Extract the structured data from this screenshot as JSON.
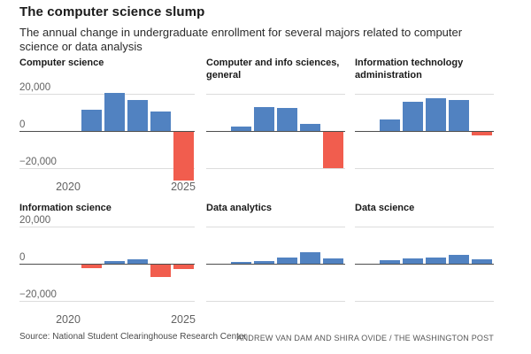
{
  "header": {
    "title": "The computer science slump",
    "subtitle": "The annual change in undergraduate enrollment for several majors related to computer science or data analysis",
    "subtitle_lines": [
      "The annual change in undergraduate enrollment for several majors related to computer",
      "science or data analysis"
    ]
  },
  "footer": {
    "source": "Source: National Student Clearinghouse Research Center",
    "credit": "ANDREW VAN DAM AND SHIRA OVIDE / THE WASHINGTON POST"
  },
  "colors": {
    "positive_bar": "#5182c1",
    "negative_bar": "#f15d4e",
    "gridline": "#dcdcdc",
    "zero_line": "#4d4d4d",
    "tick_label": "#636363",
    "title_text": "#1a1a1a"
  },
  "axis": {
    "y_ticks": [
      "20,000",
      "0",
      "−20,000"
    ],
    "y_tick_values": [
      20000,
      0,
      -20000
    ],
    "x_ticks": [
      "2020",
      "2025"
    ],
    "grid": "horizontal-only"
  },
  "chart_data": [
    {
      "type": "bar",
      "title": "Computer science",
      "title_lines": [
        "Computer science"
      ],
      "categories": [
        "2020",
        "2021",
        "2022",
        "2023",
        "2024",
        "2025"
      ],
      "values": [
        0,
        11500,
        20500,
        16500,
        10500,
        -26000
      ],
      "ylim": [
        -20000,
        20000
      ]
    },
    {
      "type": "bar",
      "title": "Computer and info sciences, general",
      "title_lines": [
        "Computer and info sciences,",
        "general"
      ],
      "categories": [
        "2020",
        "2021",
        "2022",
        "2023",
        "2024",
        "2025"
      ],
      "values": [
        0,
        2200,
        12800,
        12500,
        3800,
        -19500
      ],
      "ylim": [
        -20000,
        20000
      ]
    },
    {
      "type": "bar",
      "title": "Information technology administration",
      "title_lines": [
        "Information technology",
        "administration"
      ],
      "categories": [
        "2020",
        "2021",
        "2022",
        "2023",
        "2024",
        "2025"
      ],
      "values": [
        0,
        6400,
        15500,
        17600,
        16800,
        -2000
      ],
      "ylim": [
        -20000,
        20000
      ]
    },
    {
      "type": "bar",
      "title": "Information science",
      "title_lines": [
        "Information science"
      ],
      "categories": [
        "2020",
        "2021",
        "2022",
        "2023",
        "2024",
        "2025"
      ],
      "values": [
        0,
        -1700,
        1600,
        2300,
        -6500,
        -2500
      ],
      "ylim": [
        -20000,
        20000
      ]
    },
    {
      "type": "bar",
      "title": "Data analytics",
      "title_lines": [
        "Data analytics"
      ],
      "categories": [
        "2020",
        "2021",
        "2022",
        "2023",
        "2024",
        "2025"
      ],
      "values": [
        0,
        1100,
        1400,
        3300,
        6300,
        3000
      ],
      "ylim": [
        -20000,
        20000
      ]
    },
    {
      "type": "bar",
      "title": "Data science",
      "title_lines": [
        "Data science"
      ],
      "categories": [
        "2020",
        "2021",
        "2022",
        "2023",
        "2024",
        "2025"
      ],
      "values": [
        0,
        2100,
        3000,
        3300,
        4700,
        2500
      ],
      "ylim": [
        -20000,
        20000
      ]
    }
  ]
}
